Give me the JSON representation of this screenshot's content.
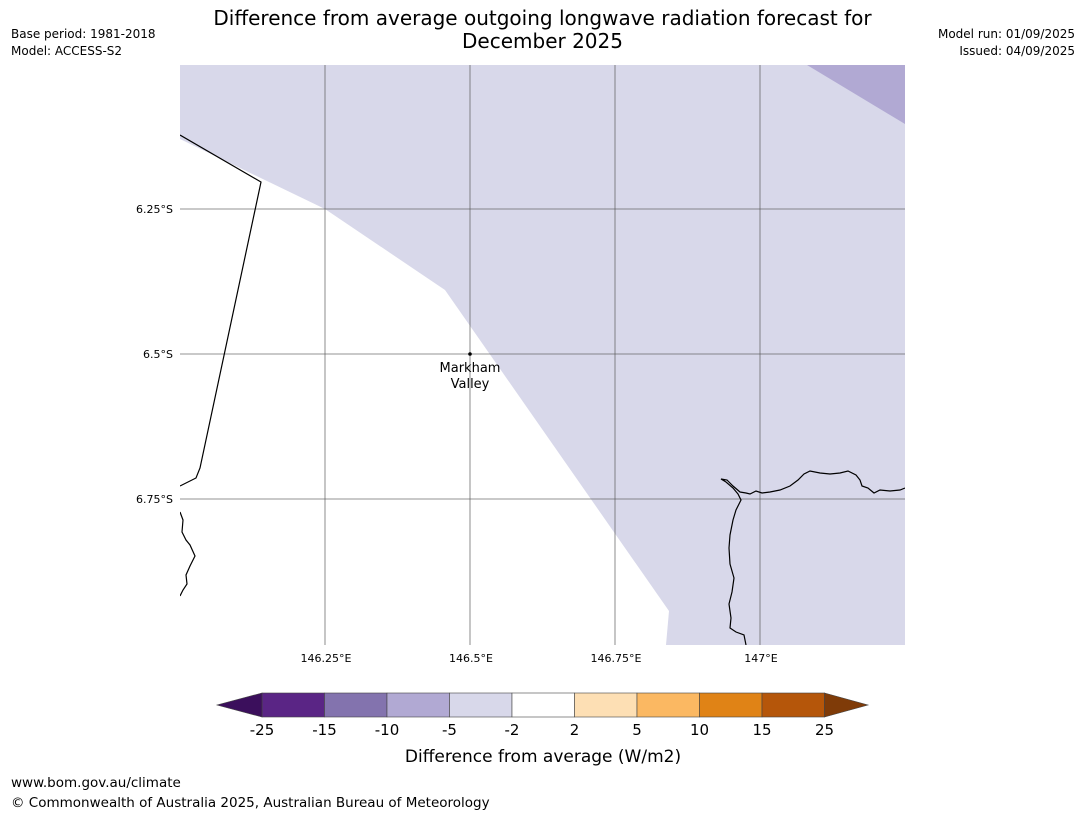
{
  "header": {
    "base_period": "Base period: 1981-2018",
    "model": "Model: ACCESS-S2",
    "model_run": "Model run: 01/09/2025",
    "issued": "Issued: 04/09/2025",
    "title_line1": "Difference from average outgoing longwave radiation forecast for",
    "title_line2": "December 2025"
  },
  "map": {
    "lat_labels": [
      "6.25°S",
      "6.5°S",
      "6.75°S"
    ],
    "lon_labels": [
      "146.25°E",
      "146.5°E",
      "146.75°E",
      "147°E"
    ],
    "location_line1": "Markham",
    "location_line2": "Valley",
    "fill_colors": {
      "light_purple": "#d8d8ea",
      "medium_purple": "#b1a9d3",
      "land_outline": "#000000",
      "gridline": "#555555"
    }
  },
  "legend": {
    "tick_labels": [
      "-25",
      "-15",
      "-10",
      "-5",
      "-2",
      "2",
      "5",
      "10",
      "15",
      "25"
    ],
    "colors": [
      "#3b0f5c",
      "#5a2585",
      "#8373ae",
      "#b1a9d3",
      "#d8d8ea",
      "#ffffff",
      "#fddfb4",
      "#fbb862",
      "#e08316",
      "#b5560a",
      "#7f3b08"
    ],
    "label": "Difference from average (W/m2)"
  },
  "footer": {
    "url": "www.bom.gov.au/climate",
    "copyright": "© Commonwealth of Australia 2025, Australian Bureau of Meteorology"
  }
}
